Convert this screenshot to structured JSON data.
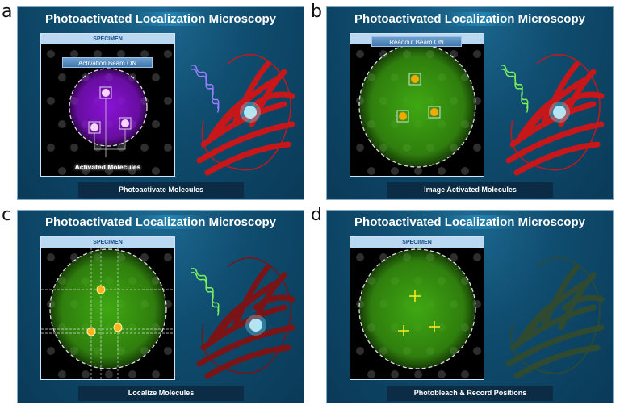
{
  "panels": [
    {
      "letter": "a",
      "title_pre": "Photoactivated ",
      "title_hl": "Localization",
      "title_post": " Microscopy",
      "specimen_label": "SPECIMEN",
      "beam_label": "Activation Beam ON",
      "annotation": "Activated Molecules",
      "caption": "Photoactivate Molecules",
      "mode": "activate",
      "circle_color": "#8a12d6",
      "wave_color": "#9a7cff",
      "protein_color": "#c8171a"
    },
    {
      "letter": "b",
      "title_pre": "Photoactivated ",
      "title_hl": "Localization",
      "title_post": " Microscopy",
      "beam_label": "Readout Beam ON",
      "caption": "Image Activated Molecules",
      "mode": "readout",
      "circle_color": "#3fa812",
      "wave_color": "#7cf05a",
      "protein_color": "#c8171a"
    },
    {
      "letter": "c",
      "title_pre": "Photoactivated ",
      "title_hl": "Localization",
      "title_post": " Microscopy",
      "specimen_label": "SPECIMEN",
      "caption": "Localize Molecules",
      "mode": "localize",
      "circle_color": "#3fa812",
      "wave_color": "#7cf05a",
      "protein_color": "#7a1416"
    },
    {
      "letter": "d",
      "title_pre": "Photoactivated ",
      "title_hl": "Localization",
      "title_post": " Microscopy",
      "specimen_label": "SPECIMEN",
      "caption": "Photobleach & Record Positions",
      "mode": "bleach",
      "circle_color": "#3fa812",
      "wave_color": "",
      "protein_color": "#2f4a30"
    }
  ]
}
